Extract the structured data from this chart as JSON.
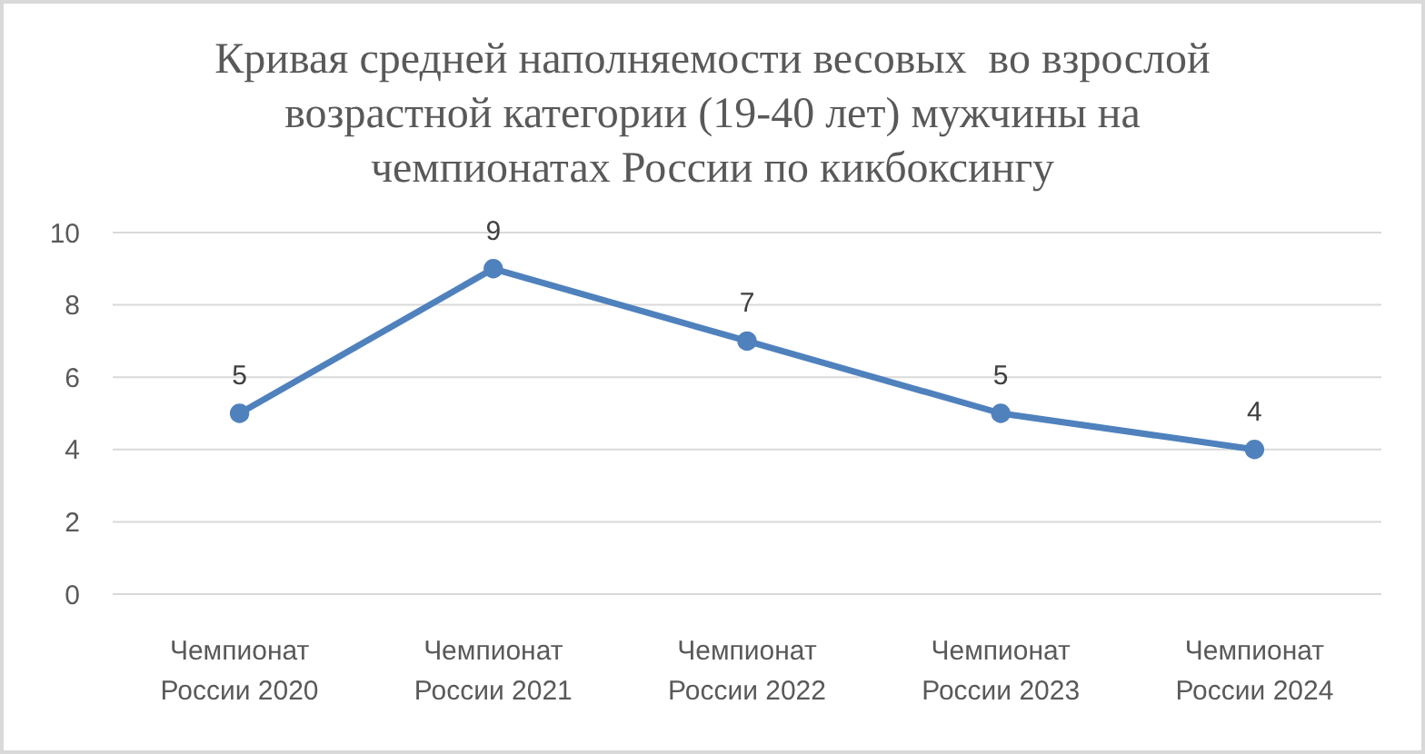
{
  "chart_data": {
    "type": "line",
    "title": "Кривая средней наполняемости весовых  во взрослой возрастной категории (19-40 лет) мужчины на чемпионатах России по кикбоксингу",
    "categories": [
      "Чемпионат России 2020",
      "Чемпионат России 2021",
      "Чемпионат России 2022",
      "Чемпионат России 2023",
      "Чемпионат России 2024"
    ],
    "values": [
      5,
      9,
      7,
      5,
      4
    ],
    "color": "#4f81bd",
    "ylim": [
      0,
      10
    ],
    "yticks": [
      0,
      2,
      4,
      6,
      8,
      10
    ],
    "grid": "y",
    "marker": "circle",
    "line_style": "solid",
    "data_labels": true
  }
}
